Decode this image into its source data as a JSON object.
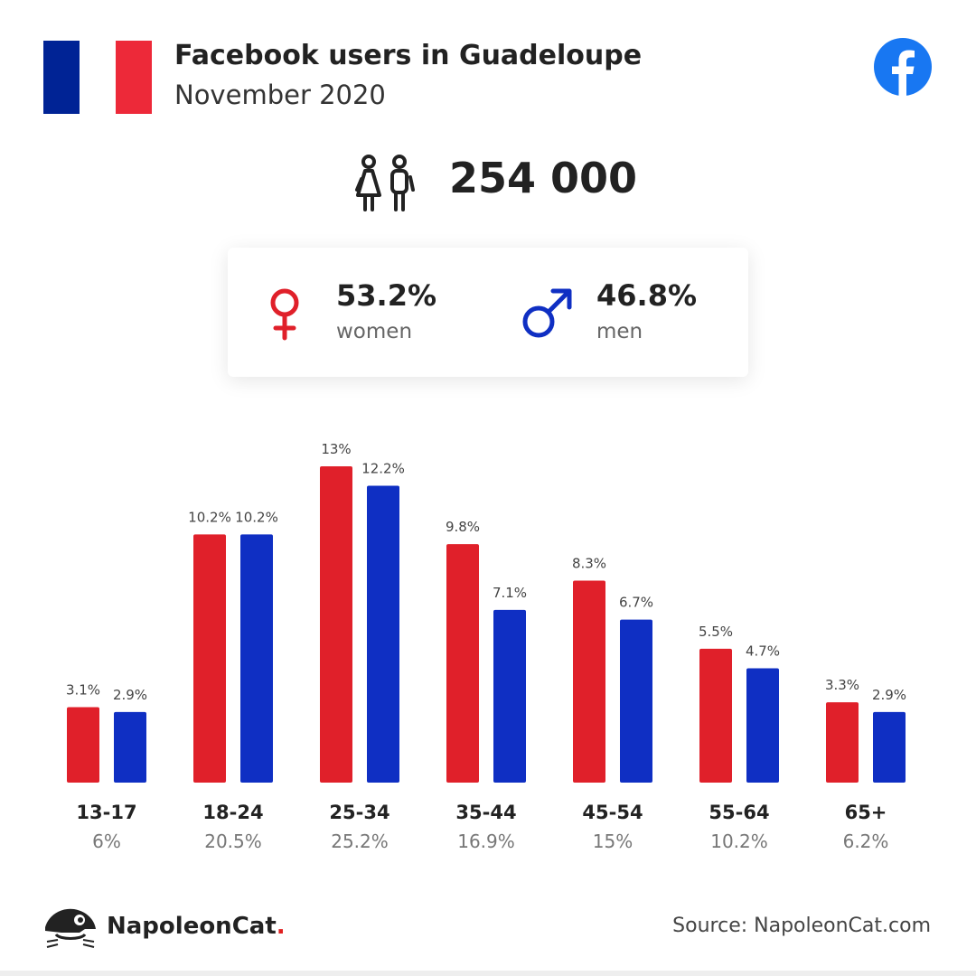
{
  "header": {
    "title": "Facebook users in Guadeloupe",
    "subtitle": "November 2020",
    "flag_colors": [
      "#002395",
      "#ffffff",
      "#ED2939"
    ],
    "brand_icon": "facebook-icon",
    "brand_color": "#1877F2"
  },
  "total": {
    "icon": "people-icon",
    "value": "254 000"
  },
  "gender": {
    "women": {
      "icon": "female-symbol-icon",
      "pct": "53.2%",
      "label": "women",
      "color": "#e0202a"
    },
    "men": {
      "icon": "male-symbol-icon",
      "pct": "46.8%",
      "label": "men",
      "color": "#0f2fc3"
    }
  },
  "chart_data": {
    "type": "bar",
    "categories": [
      "13-17",
      "18-24",
      "25-34",
      "35-44",
      "45-54",
      "55-64",
      "65+"
    ],
    "category_totals": [
      "6%",
      "20.5%",
      "25.2%",
      "16.9%",
      "15%",
      "10.2%",
      "6.2%"
    ],
    "series": [
      {
        "color": "#e0202a",
        "values": [
          3.1,
          10.2,
          13,
          9.8,
          8.3,
          5.5,
          3.3
        ],
        "labels": [
          "3.1%",
          "10.2%",
          "13%",
          "9.8%",
          "8.3%",
          "5.5%",
          "3.3%"
        ]
      },
      {
        "color": "#0f2fc3",
        "values": [
          2.9,
          10.2,
          12.2,
          7.1,
          6.7,
          4.7,
          2.9
        ],
        "labels": [
          "2.9%",
          "10.2%",
          "12.2%",
          "7.1%",
          "6.7%",
          "4.7%",
          "2.9%"
        ]
      }
    ],
    "ylim": [
      0,
      13
    ],
    "grid": false,
    "legend": "none"
  },
  "footer": {
    "logo_icon": "napoleoncat-logo-icon",
    "brand_name": "NapoleonCat",
    "brand_dot": ".",
    "source": "Source: NapoleonCat.com"
  }
}
